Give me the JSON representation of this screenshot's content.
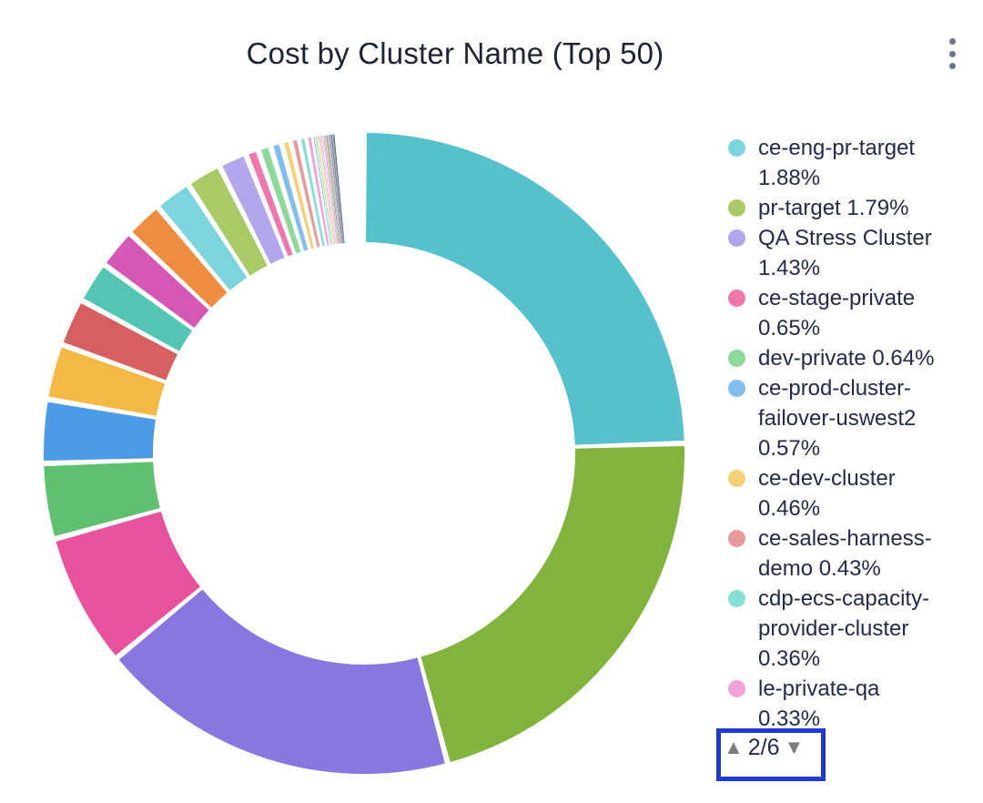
{
  "header": {
    "title": "Cost by Cluster Name (Top 50)",
    "menu_icon": "kebab-vertical-icon"
  },
  "colors": {
    "title_text": "#1C2433",
    "legend_text": "#222B4A",
    "kebab_dot": "#6B7585",
    "pager_arrow": "#7E7E7E",
    "highlight_border": "#1B3AD6",
    "background": "#FFFFFF"
  },
  "legend": {
    "page_indicator": "2/6",
    "up_arrow": "▲",
    "down_arrow": "▼",
    "items": [
      {
        "color": "#7CD5DD",
        "lines": [
          "ce-eng-pr-target",
          "1.88%"
        ]
      },
      {
        "color": "#A8CA67",
        "lines": [
          "pr-target 1.79%"
        ]
      },
      {
        "color": "#B3A6EC",
        "lines": [
          "QA Stress Cluster",
          "1.43%"
        ]
      },
      {
        "color": "#EE77AE",
        "lines": [
          "ce-stage-private",
          "0.65%"
        ]
      },
      {
        "color": "#8CD99A",
        "lines": [
          "dev-private 0.64%"
        ]
      },
      {
        "color": "#82BDF0",
        "lines": [
          "ce-prod-cluster-",
          "failover-uswest2",
          "0.57%"
        ]
      },
      {
        "color": "#F6D077",
        "lines": [
          "ce-dev-cluster",
          "0.46%"
        ]
      },
      {
        "color": "#E89A9B",
        "lines": [
          "ce-sales-harness-",
          "demo 0.43%"
        ]
      },
      {
        "color": "#85E0D5",
        "lines": [
          "cdp-ecs-capacity-",
          "provider-cluster",
          "0.36%"
        ]
      },
      {
        "color": "#F0A3D8",
        "lines": [
          "le-private-qa",
          "0.33%"
        ]
      }
    ]
  },
  "chart_data": {
    "type": "pie",
    "donut": true,
    "title": "Cost by Cluster Name (Top 50)",
    "start_angle": "top, clockwise",
    "legend_position": "right",
    "legend_page": "2/6",
    "legend_pages_total": 6,
    "unlabeled_values_estimated_from_arc_angles": true,
    "visible_legend_items": [
      {
        "name": "ce-eng-pr-target",
        "percent": 1.88,
        "color": "#7CD5DD"
      },
      {
        "name": "pr-target",
        "percent": 1.79,
        "color": "#A8CA67"
      },
      {
        "name": "QA Stress Cluster",
        "percent": 1.43,
        "color": "#B3A6EC"
      },
      {
        "name": "ce-stage-private",
        "percent": 0.65,
        "color": "#EE77AE"
      },
      {
        "name": "dev-private",
        "percent": 0.64,
        "color": "#8CD99A"
      },
      {
        "name": "ce-prod-cluster-failover-uswest2",
        "percent": 0.57,
        "color": "#82BDF0"
      },
      {
        "name": "ce-dev-cluster",
        "percent": 0.46,
        "color": "#F6D077"
      },
      {
        "name": "ce-sales-harness-demo",
        "percent": 0.43,
        "color": "#E89A9B"
      },
      {
        "name": "cdp-ecs-capacity-provider-cluster",
        "percent": 0.36,
        "color": "#85E0D5"
      },
      {
        "name": "le-private-qa",
        "percent": 0.33,
        "color": "#F0A3D8"
      }
    ],
    "slices": [
      {
        "name": null,
        "percent": 24.5,
        "color": "#55C1CD"
      },
      {
        "name": null,
        "percent": 21.3,
        "color": "#82B43D"
      },
      {
        "name": null,
        "percent": 18.2,
        "color": "#8678DE"
      },
      {
        "name": null,
        "percent": 6.7,
        "color": "#E8529D"
      },
      {
        "name": null,
        "percent": 3.8,
        "color": "#5FC06F"
      },
      {
        "name": null,
        "percent": 3.2,
        "color": "#4D9AE8"
      },
      {
        "name": null,
        "percent": 2.8,
        "color": "#F4B844"
      },
      {
        "name": null,
        "percent": 2.4,
        "color": "#D65F60"
      },
      {
        "name": null,
        "percent": 2.1,
        "color": "#52C6B2"
      },
      {
        "name": null,
        "percent": 2.0,
        "color": "#D558B5"
      },
      {
        "name": null,
        "percent": 1.9,
        "color": "#EE8C3F"
      },
      {
        "name": "ce-eng-pr-target",
        "percent": 1.88,
        "color": "#7CD5DD"
      },
      {
        "name": "pr-target",
        "percent": 1.79,
        "color": "#A8CA67"
      },
      {
        "name": "QA Stress Cluster",
        "percent": 1.43,
        "color": "#B3A6EC"
      },
      {
        "name": "ce-stage-private",
        "percent": 0.65,
        "color": "#EE77AE"
      },
      {
        "name": "dev-private",
        "percent": 0.64,
        "color": "#8CD99A"
      },
      {
        "name": "ce-prod-cluster-failover-uswest2",
        "percent": 0.57,
        "color": "#82BDF0"
      },
      {
        "name": "ce-dev-cluster",
        "percent": 0.46,
        "color": "#F6D077"
      },
      {
        "name": "ce-sales-harness-demo",
        "percent": 0.43,
        "color": "#E89A9B"
      },
      {
        "name": "cdp-ecs-capacity-provider-cluster",
        "percent": 0.36,
        "color": "#85E0D5"
      },
      {
        "name": "le-private-qa",
        "percent": 0.33,
        "color": "#F0A3D8"
      },
      {
        "name": null,
        "percent": 0.12,
        "color": "#85C2F0"
      },
      {
        "name": null,
        "percent": 0.1,
        "color": "#8CD99A"
      },
      {
        "name": null,
        "percent": 0.09,
        "color": "#F6D077"
      },
      {
        "name": null,
        "percent": 0.08,
        "color": "#E89A9B"
      },
      {
        "name": null,
        "percent": 0.07,
        "color": "#F0A3D8"
      },
      {
        "name": null,
        "percent": 0.06,
        "color": "#8FE3D1"
      },
      {
        "name": null,
        "percent": 0.055,
        "color": "#EE77AE"
      },
      {
        "name": null,
        "percent": 0.05,
        "color": "#D877C2"
      },
      {
        "name": null,
        "percent": 0.045,
        "color": "#F6D077"
      },
      {
        "name": null,
        "percent": 0.04,
        "color": "#2F7E7B"
      },
      {
        "name": null,
        "percent": 0.035,
        "color": "#8CD99A"
      },
      {
        "name": null,
        "percent": 0.032,
        "color": "#B3A6EC"
      },
      {
        "name": null,
        "percent": 0.03,
        "color": "#F2A9D4"
      },
      {
        "name": null,
        "percent": 0.028,
        "color": "#F0B27E"
      },
      {
        "name": null,
        "percent": 0.026,
        "color": "#2F7E7B"
      },
      {
        "name": null,
        "percent": 0.024,
        "color": "#8FE3D1"
      },
      {
        "name": null,
        "percent": 0.022,
        "color": "#EE9ED2"
      },
      {
        "name": null,
        "percent": 0.02,
        "color": "#D877C2"
      },
      {
        "name": null,
        "percent": 0.018,
        "color": "#9B8CE8"
      },
      {
        "name": null,
        "percent": 0.017,
        "color": "#31406E"
      },
      {
        "name": null,
        "percent": 0.016,
        "color": "#8CD99A"
      },
      {
        "name": null,
        "percent": 0.015,
        "color": "#85C2F0"
      },
      {
        "name": null,
        "percent": 0.014,
        "color": "#F6D077"
      },
      {
        "name": null,
        "percent": 0.013,
        "color": "#5A6B9E"
      },
      {
        "name": null,
        "percent": 0.012,
        "color": "#8FE3D1"
      },
      {
        "name": null,
        "percent": 0.011,
        "color": "#A9C766"
      },
      {
        "name": null,
        "percent": 0.01,
        "color": "#2F7E7B"
      },
      {
        "name": null,
        "percent": 0.009,
        "color": "#B3A6EC"
      },
      {
        "name": null,
        "percent": 0.008,
        "color": "#31406E"
      }
    ]
  }
}
